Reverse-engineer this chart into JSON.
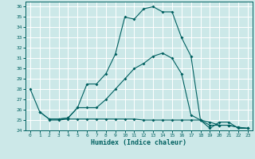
{
  "xlabel": "Humidex (Indice chaleur)",
  "bg_color": "#cce8e8",
  "line_color": "#006060",
  "grid_color": "#ffffff",
  "xlim": [
    -0.5,
    23.5
  ],
  "ylim": [
    24,
    36.5
  ],
  "xticks": [
    0,
    1,
    2,
    3,
    4,
    5,
    6,
    7,
    8,
    9,
    10,
    11,
    12,
    13,
    14,
    15,
    16,
    17,
    18,
    19,
    20,
    21,
    22,
    23
  ],
  "yticks": [
    24,
    25,
    26,
    27,
    28,
    29,
    30,
    31,
    32,
    33,
    34,
    35,
    36
  ],
  "series1_x": [
    0,
    1,
    2,
    3,
    4,
    5,
    6,
    7,
    8,
    9,
    10,
    11,
    12,
    13,
    14,
    15,
    16,
    17,
    18,
    19,
    20,
    21,
    22,
    23
  ],
  "series1_y": [
    28.0,
    25.8,
    25.1,
    25.1,
    25.2,
    26.2,
    28.5,
    28.5,
    29.5,
    31.4,
    35.0,
    34.8,
    35.8,
    36.0,
    35.5,
    35.5,
    33.0,
    31.2,
    25.0,
    24.2,
    24.8,
    24.8,
    24.2,
    24.2
  ],
  "series2_x": [
    1,
    2,
    3,
    4,
    5,
    6,
    7,
    8,
    9,
    10,
    11,
    12,
    13,
    14,
    15,
    16,
    17,
    18,
    19,
    20,
    21,
    22,
    23
  ],
  "series2_y": [
    25.8,
    25.1,
    25.1,
    25.2,
    26.2,
    26.2,
    26.2,
    27.0,
    28.0,
    29.0,
    30.0,
    30.5,
    31.2,
    31.5,
    31.0,
    29.5,
    25.5,
    25.0,
    24.8,
    24.5,
    24.5,
    24.3,
    24.2
  ],
  "series3_x": [
    2,
    3,
    4,
    5,
    6,
    7,
    8,
    9,
    10,
    11,
    12,
    13,
    14,
    15,
    16,
    17,
    18,
    19,
    20,
    21,
    22,
    23
  ],
  "series3_y": [
    25.0,
    25.0,
    25.1,
    25.1,
    25.1,
    25.1,
    25.1,
    25.1,
    25.1,
    25.1,
    25.0,
    25.0,
    25.0,
    25.0,
    25.0,
    25.0,
    25.0,
    24.5,
    24.5,
    24.5,
    24.3,
    24.2
  ]
}
